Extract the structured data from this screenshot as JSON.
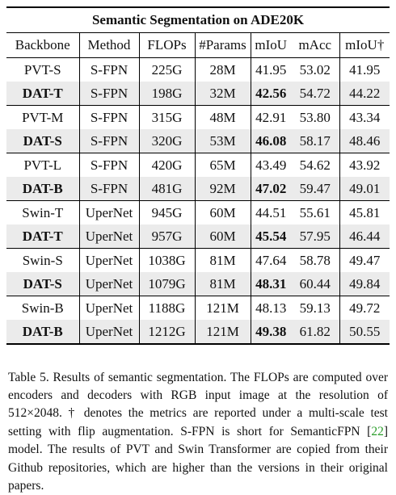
{
  "table": {
    "title": "Semantic Segmentation on ADE20K",
    "header": [
      "Backbone",
      "Method",
      "FLOPs",
      "#Params",
      "mIoU",
      "mAcc",
      "mIoU†"
    ],
    "rows": [
      [
        "PVT-S",
        "S-FPN",
        "225G",
        "28M",
        "41.95",
        "53.02",
        "41.95"
      ],
      [
        "DAT-T",
        "S-FPN",
        "198G",
        "32M",
        "42.56",
        "54.72",
        "44.22"
      ],
      [
        "PVT-M",
        "S-FPN",
        "315G",
        "48M",
        "42.91",
        "53.80",
        "43.34"
      ],
      [
        "DAT-S",
        "S-FPN",
        "320G",
        "53M",
        "46.08",
        "58.17",
        "48.46"
      ],
      [
        "PVT-L",
        "S-FPN",
        "420G",
        "65M",
        "43.49",
        "54.62",
        "43.92"
      ],
      [
        "DAT-B",
        "S-FPN",
        "481G",
        "92M",
        "47.02",
        "59.47",
        "49.01"
      ],
      [
        "Swin-T",
        "UperNet",
        "945G",
        "60M",
        "44.51",
        "55.61",
        "45.81"
      ],
      [
        "DAT-T",
        "UperNet",
        "957G",
        "60M",
        "45.54",
        "57.95",
        "46.44"
      ],
      [
        "Swin-S",
        "UperNet",
        "1038G",
        "81M",
        "47.64",
        "58.78",
        "49.47"
      ],
      [
        "DAT-S",
        "UperNet",
        "1079G",
        "81M",
        "48.31",
        "60.44",
        "49.84"
      ],
      [
        "Swin-B",
        "UperNet",
        "1188G",
        "121M",
        "48.13",
        "59.13",
        "49.72"
      ],
      [
        "DAT-B",
        "UperNet",
        "1212G",
        "121M",
        "49.38",
        "61.82",
        "50.55"
      ]
    ]
  },
  "caption": {
    "text_before": "Table 5. Results of semantic segmentation. The FLOPs are computed over encoders and decoders with RGB input image at the resolution of 512×2048. † denotes the metrics are reported under a multi-scale test setting with flip augmentation. S-FPN is short for SemanticFPN [",
    "ref": "22",
    "text_after": "] model. The results of PVT and Swin Transformer are copied from their Github repositories, which are higher than the versions in their original papers."
  }
}
